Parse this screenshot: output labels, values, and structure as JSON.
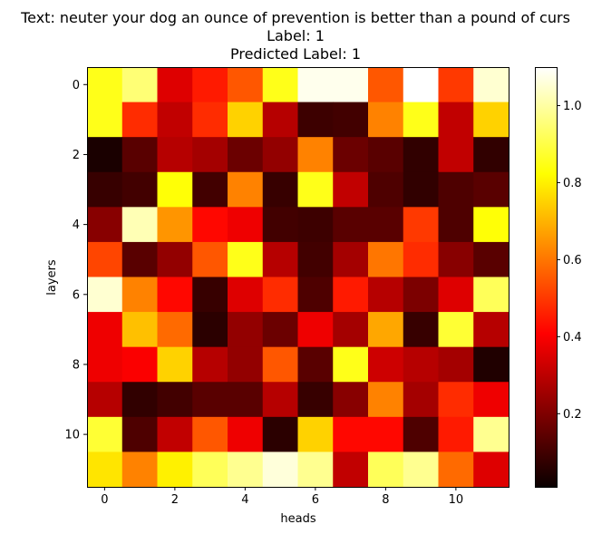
{
  "chart_data": {
    "type": "heatmap",
    "title_lines": [
      "Text: neuter your dog an ounce of prevention is better than a pound of curs",
      "Label: 1",
      "Predicted Label: 1"
    ],
    "xlabel": "heads",
    "ylabel": "layers",
    "colormap": "hot",
    "x_ticks": [
      0,
      2,
      4,
      6,
      8,
      10
    ],
    "y_ticks": [
      0,
      2,
      4,
      6,
      8,
      10
    ],
    "colorbar": {
      "range": [
        0.01,
        1.1
      ],
      "ticks": [
        0.2,
        0.4,
        0.6,
        0.8,
        1.0
      ],
      "tick_labels": [
        "0.2",
        "0.4",
        "0.6",
        "0.8",
        "1.0"
      ]
    },
    "values": [
      [
        0.85,
        0.95,
        0.35,
        0.45,
        0.55,
        0.85,
        1.08,
        1.08,
        0.55,
        1.1,
        0.5,
        1.05
      ],
      [
        0.85,
        0.48,
        0.3,
        0.48,
        0.75,
        0.28,
        0.07,
        0.08,
        0.62,
        0.85,
        0.3,
        0.75
      ],
      [
        0.01,
        0.12,
        0.28,
        0.25,
        0.15,
        0.22,
        0.62,
        0.15,
        0.12,
        0.05,
        0.3,
        0.05
      ],
      [
        0.06,
        0.08,
        0.83,
        0.08,
        0.62,
        0.06,
        0.85,
        0.3,
        0.1,
        0.05,
        0.1,
        0.12
      ],
      [
        0.2,
        1.02,
        0.65,
        0.42,
        0.38,
        0.08,
        0.07,
        0.12,
        0.12,
        0.5,
        0.1,
        0.83
      ],
      [
        0.52,
        0.12,
        0.22,
        0.55,
        0.85,
        0.28,
        0.08,
        0.25,
        0.6,
        0.48,
        0.2,
        0.12
      ],
      [
        1.05,
        0.62,
        0.42,
        0.06,
        0.35,
        0.48,
        0.1,
        0.45,
        0.28,
        0.18,
        0.35,
        0.92
      ],
      [
        0.38,
        0.72,
        0.58,
        0.04,
        0.22,
        0.15,
        0.38,
        0.25,
        0.68,
        0.06,
        0.88,
        0.28
      ],
      [
        0.38,
        0.4,
        0.75,
        0.28,
        0.22,
        0.55,
        0.12,
        0.85,
        0.32,
        0.28,
        0.25,
        0.02
      ],
      [
        0.28,
        0.05,
        0.08,
        0.12,
        0.12,
        0.28,
        0.06,
        0.2,
        0.62,
        0.25,
        0.48,
        0.38
      ],
      [
        0.88,
        0.1,
        0.3,
        0.55,
        0.38,
        0.04,
        0.75,
        0.42,
        0.42,
        0.1,
        0.45,
        0.98
      ],
      [
        0.78,
        0.62,
        0.8,
        0.92,
        0.98,
        1.06,
        0.98,
        0.3,
        0.92,
        0.98,
        0.58,
        0.35
      ]
    ]
  }
}
